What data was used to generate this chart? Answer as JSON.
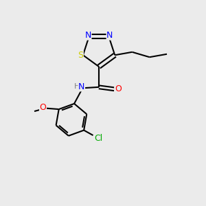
{
  "bg_color": "#ebebeb",
  "atom_colors": {
    "N": "#0000ff",
    "S": "#cccc00",
    "O": "#ff0000",
    "Cl": "#00aa00",
    "C": "#000000",
    "H": "#808080"
  },
  "font_size": 9,
  "line_width": 1.5
}
